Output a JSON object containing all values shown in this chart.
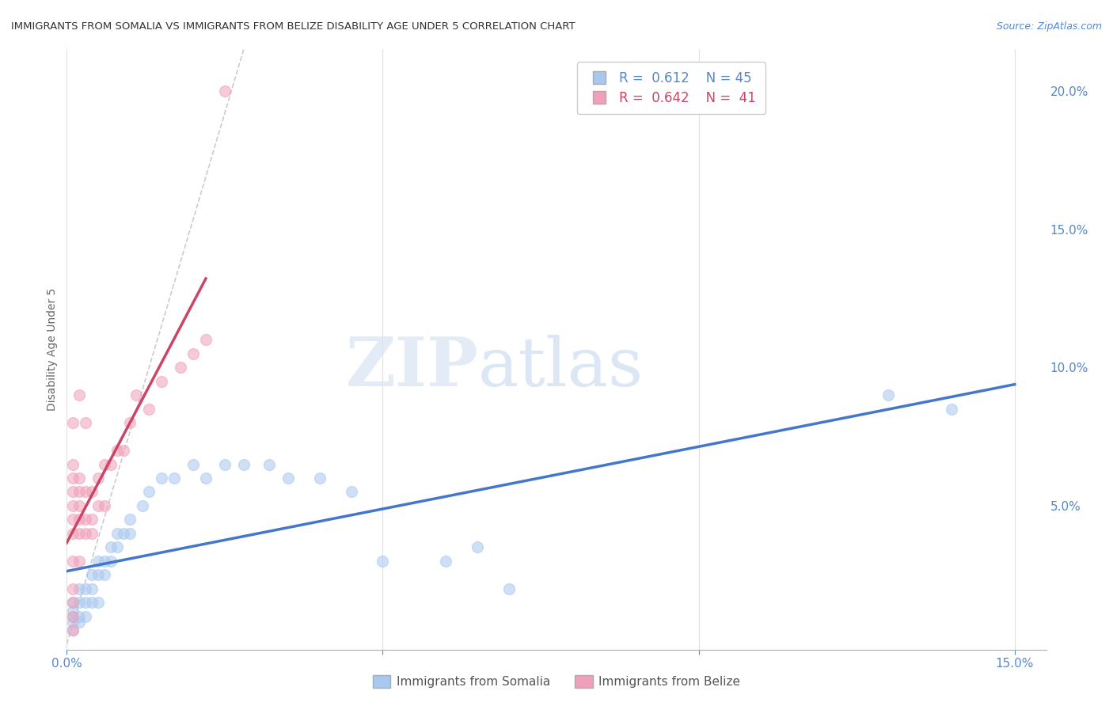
{
  "title": "IMMIGRANTS FROM SOMALIA VS IMMIGRANTS FROM BELIZE DISABILITY AGE UNDER 5 CORRELATION CHART",
  "source": "Source: ZipAtlas.com",
  "ylabel": "Disability Age Under 5",
  "somalia_color": "#A8C8F0",
  "belize_color": "#F0A0B8",
  "somalia_line_color": "#4477CC",
  "belize_line_color": "#CC4466",
  "somalia_label": "Immigrants from Somalia",
  "belize_label": "Immigrants from Belize",
  "background_color": "#ffffff",
  "grid_color": "#e0e0e0",
  "xlim": [
    0.0,
    0.155
  ],
  "ylim": [
    -0.002,
    0.215
  ],
  "right_yticks": [
    0.0,
    0.05,
    0.1,
    0.15,
    0.2
  ],
  "somalia_x": [
    0.001,
    0.001,
    0.001,
    0.001,
    0.001,
    0.002,
    0.002,
    0.002,
    0.002,
    0.003,
    0.003,
    0.003,
    0.004,
    0.004,
    0.004,
    0.005,
    0.005,
    0.005,
    0.006,
    0.006,
    0.007,
    0.007,
    0.008,
    0.008,
    0.009,
    0.01,
    0.01,
    0.012,
    0.013,
    0.015,
    0.017,
    0.02,
    0.022,
    0.025,
    0.028,
    0.032,
    0.035,
    0.04,
    0.045,
    0.05,
    0.06,
    0.065,
    0.07,
    0.13,
    0.14
  ],
  "somalia_y": [
    0.005,
    0.008,
    0.01,
    0.012,
    0.015,
    0.008,
    0.01,
    0.015,
    0.02,
    0.01,
    0.015,
    0.02,
    0.015,
    0.02,
    0.025,
    0.015,
    0.025,
    0.03,
    0.025,
    0.03,
    0.03,
    0.035,
    0.035,
    0.04,
    0.04,
    0.04,
    0.045,
    0.05,
    0.055,
    0.06,
    0.06,
    0.065,
    0.06,
    0.065,
    0.065,
    0.065,
    0.06,
    0.06,
    0.055,
    0.03,
    0.03,
    0.035,
    0.02,
    0.09,
    0.085
  ],
  "belize_x": [
    0.001,
    0.001,
    0.001,
    0.001,
    0.001,
    0.001,
    0.001,
    0.001,
    0.001,
    0.001,
    0.001,
    0.001,
    0.002,
    0.002,
    0.002,
    0.002,
    0.002,
    0.002,
    0.002,
    0.003,
    0.003,
    0.003,
    0.003,
    0.004,
    0.004,
    0.004,
    0.005,
    0.005,
    0.006,
    0.006,
    0.007,
    0.008,
    0.009,
    0.01,
    0.011,
    0.013,
    0.015,
    0.018,
    0.02,
    0.022,
    0.025
  ],
  "belize_y": [
    0.005,
    0.01,
    0.015,
    0.02,
    0.03,
    0.04,
    0.045,
    0.05,
    0.055,
    0.06,
    0.065,
    0.08,
    0.03,
    0.04,
    0.045,
    0.05,
    0.055,
    0.06,
    0.09,
    0.04,
    0.045,
    0.055,
    0.08,
    0.04,
    0.045,
    0.055,
    0.05,
    0.06,
    0.05,
    0.065,
    0.065,
    0.07,
    0.07,
    0.08,
    0.09,
    0.085,
    0.095,
    0.1,
    0.105,
    0.11,
    0.2
  ]
}
